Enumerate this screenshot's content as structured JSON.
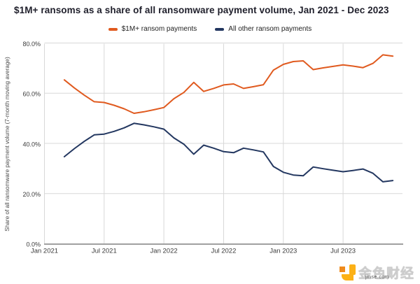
{
  "title": "$1M+ ransoms as a share of all ransomware payment volume, Jan 2021 - Dec 2023",
  "legend": [
    {
      "label": "$1M+ ransom payments",
      "color": "#E05A1F"
    },
    {
      "label": "All other ransom payments",
      "color": "#233760"
    }
  ],
  "y_axis": {
    "title": "Share of all ransomware payment volume (7-month moving average)",
    "ticks": [
      "80.0%",
      "60.0%",
      "40.0%",
      "20.0%",
      "0.0%"
    ]
  },
  "x_axis": {
    "ticks": [
      "Jan 2021",
      "Jul 2021",
      "Jan 2022",
      "Jul 2022",
      "Jan 2023",
      "Jul 2023"
    ]
  },
  "watermark": {
    "text": "金色财经",
    "subtext": "jinse.com"
  },
  "chart_data": {
    "type": "line",
    "title": "$1M+ ransoms as a share of all ransomware payment volume, Jan 2021 - Dec 2023",
    "ylabel": "Share of all ransomware payment volume (7-month moving average)",
    "unit": "%",
    "ylim": [
      0,
      80
    ],
    "y_tick_step": 20,
    "grid": true,
    "legend_position": "top",
    "x_freq": "monthly",
    "x_start_month_offset": 2,
    "x_tick_offsets": [
      0,
      6,
      12,
      18,
      24,
      30
    ],
    "x_tick_labels": [
      "Jan 2021",
      "Jul 2021",
      "Jan 2022",
      "Jul 2022",
      "Jan 2023",
      "Jul 2023"
    ],
    "x": [
      "Mar 2021",
      "Apr 2021",
      "May 2021",
      "Jun 2021",
      "Jul 2021",
      "Aug 2021",
      "Sep 2021",
      "Oct 2021",
      "Nov 2021",
      "Dec 2021",
      "Jan 2022",
      "Feb 2022",
      "Mar 2022",
      "Apr 2022",
      "May 2022",
      "Jun 2022",
      "Jul 2022",
      "Aug 2022",
      "Sep 2022",
      "Oct 2022",
      "Nov 2022",
      "Dec 2022",
      "Jan 2023",
      "Feb 2023",
      "Mar 2023",
      "Apr 2023",
      "May 2023",
      "Jun 2023",
      "Jul 2023",
      "Aug 2023",
      "Sep 2023",
      "Oct 2023",
      "Nov 2023",
      "Dec 2023"
    ],
    "series": [
      {
        "name": "$1M+ ransom payments",
        "color": "#E05A1F",
        "values": [
          65.3,
          62.1,
          59.2,
          56.6,
          56.3,
          55.2,
          53.8,
          52.0,
          52.6,
          53.4,
          54.3,
          57.8,
          60.3,
          64.3,
          60.7,
          61.9,
          63.3,
          63.7,
          61.9,
          62.6,
          63.4,
          69.2,
          71.5,
          72.6,
          72.9,
          69.4,
          70.1,
          70.7,
          71.3,
          70.8,
          70.2,
          71.9,
          75.3,
          74.8
        ]
      },
      {
        "name": "All other ransom payments",
        "color": "#233760",
        "values": [
          34.7,
          37.9,
          40.8,
          43.4,
          43.7,
          44.8,
          46.2,
          48.0,
          47.4,
          46.6,
          45.7,
          42.2,
          39.7,
          35.7,
          39.3,
          38.1,
          36.7,
          36.3,
          38.1,
          37.4,
          36.6,
          30.8,
          28.5,
          27.4,
          27.1,
          30.6,
          29.9,
          29.3,
          28.7,
          29.2,
          29.8,
          28.1,
          24.7,
          25.2
        ]
      }
    ]
  }
}
